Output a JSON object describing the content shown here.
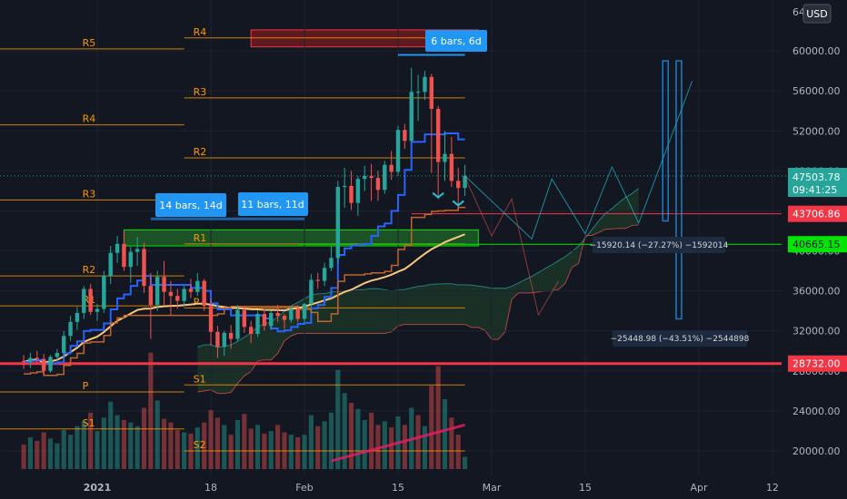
{
  "currency_button": "USD",
  "price_tag": {
    "price": "47503.78",
    "countdown": "09:41:25",
    "color": "#26a69a"
  },
  "level_tags": [
    {
      "text": "43706.86",
      "value": 43706.86,
      "bg": "#f23645",
      "line": "#f23645"
    },
    {
      "text": "40665.15",
      "value": 40665.15,
      "bg": "#00e600",
      "line": "#00e600",
      "dark_text": true
    },
    {
      "text": "28732.00",
      "value": 28732,
      "bg": "#f23645",
      "line": "#f23645"
    }
  ],
  "annotations": [
    {
      "text": "6 bars, 6d"
    },
    {
      "text": "14 bars, 14d"
    },
    {
      "text": "11 bars, 11d"
    }
  ],
  "measure_labels": [
    {
      "text": "−15920.14 (−27.27%) −1592014"
    },
    {
      "text": "−25448.98 (−43.51%) −2544898"
    }
  ],
  "colors": {
    "up": "#26a69a",
    "down": "#ef5350",
    "vwap": "#2962ff",
    "ma": "#f7c77e",
    "pivot": "#ff9800",
    "cloud": "#1e3a2a"
  },
  "chart_data": {
    "type": "candlestick",
    "y_axis": {
      "range": [
        18000,
        64000
      ],
      "ticks": [
        20000,
        24000,
        28000,
        32000,
        36000,
        40000,
        44000,
        48000,
        52000,
        56000,
        60000
      ],
      "tick_labels": [
        "20000.00",
        "24000.00",
        "28000.00",
        "32000.00",
        "36000.00",
        "40000.00",
        "44000.00",
        "48000.00",
        "52000.00",
        "56000.00",
        "60000.00"
      ],
      "top_partial_label": "64"
    },
    "x_axis": {
      "labels": [
        {
          "text": "2021",
          "bold": true,
          "day": 1
        },
        {
          "text": "18",
          "day": 18
        },
        {
          "text": "Feb",
          "day": 32
        },
        {
          "text": "15",
          "day": 46
        },
        {
          "text": "Mar",
          "day": 60
        },
        {
          "text": "15",
          "day": 74
        },
        {
          "text": "Apr",
          "day": 91
        },
        {
          "text": "12",
          "day": 102
        }
      ]
    },
    "candles": [
      [
        -10,
        29000,
        29600,
        28200,
        28900
      ],
      [
        -9,
        28900,
        29800,
        28300,
        29300
      ],
      [
        -8,
        29300,
        30000,
        28800,
        29200
      ],
      [
        -7,
        29200,
        29700,
        27500,
        28000
      ],
      [
        -6,
        28000,
        29600,
        27800,
        29400
      ],
      [
        -5,
        29400,
        30200,
        29000,
        29800
      ],
      [
        -4,
        29800,
        32000,
        29300,
        31500
      ],
      [
        -3,
        31500,
        33500,
        31000,
        32900
      ],
      [
        -2,
        32900,
        34400,
        32100,
        33800
      ],
      [
        -1,
        33800,
        36500,
        33200,
        36200
      ],
      [
        0,
        36200,
        36700,
        33600,
        33900
      ],
      [
        1,
        33900,
        34700,
        33000,
        34200
      ],
      [
        2,
        34200,
        38000,
        33800,
        37500
      ],
      [
        3,
        37500,
        40500,
        36700,
        39800
      ],
      [
        4,
        39800,
        41500,
        38800,
        40700
      ],
      [
        5,
        40700,
        42000,
        38000,
        38400
      ],
      [
        6,
        38400,
        40400,
        36800,
        39900
      ],
      [
        7,
        39900,
        41400,
        38500,
        40200
      ],
      [
        8,
        40200,
        40800,
        35800,
        36500
      ],
      [
        9,
        36500,
        37800,
        31200,
        34600
      ],
      [
        10,
        34600,
        38000,
        34000,
        37400
      ],
      [
        11,
        37400,
        39000,
        34500,
        35900
      ],
      [
        12,
        35900,
        37000,
        33600,
        35500
      ],
      [
        13,
        35500,
        36200,
        34200,
        35000
      ],
      [
        14,
        35000,
        36500,
        34400,
        36200
      ],
      [
        15,
        36200,
        37200,
        35300,
        35900
      ],
      [
        16,
        35900,
        37800,
        35500,
        37000
      ],
      [
        17,
        37000,
        37200,
        34000,
        34500
      ],
      [
        18,
        34500,
        35200,
        30500,
        31900
      ],
      [
        19,
        31900,
        32500,
        29300,
        30400
      ],
      [
        20,
        30400,
        32000,
        29500,
        31800
      ],
      [
        21,
        31800,
        32600,
        30200,
        31200
      ],
      [
        22,
        31200,
        34600,
        31000,
        34100
      ],
      [
        23,
        34100,
        34500,
        31800,
        32400
      ],
      [
        24,
        32400,
        33000,
        30800,
        31700
      ],
      [
        25,
        31700,
        34000,
        31400,
        33700
      ],
      [
        26,
        33700,
        34200,
        32000,
        32500
      ],
      [
        27,
        32500,
        34000,
        32100,
        33800
      ],
      [
        28,
        33800,
        34600,
        32900,
        33500
      ],
      [
        29,
        33500,
        33700,
        32200,
        33100
      ],
      [
        30,
        33100,
        34500,
        32800,
        34200
      ],
      [
        31,
        34200,
        34600,
        32900,
        33200
      ],
      [
        32,
        33200,
        34800,
        32900,
        34700
      ],
      [
        33,
        34700,
        37700,
        34300,
        37100
      ],
      [
        34,
        37100,
        37800,
        36200,
        37000
      ],
      [
        35,
        37000,
        38800,
        36500,
        38300
      ],
      [
        36,
        38300,
        40500,
        38000,
        39300
      ],
      [
        37,
        39300,
        47000,
        38700,
        46400
      ],
      [
        38,
        46400,
        48300,
        44300,
        46500
      ],
      [
        39,
        46500,
        48000,
        44100,
        44800
      ],
      [
        40,
        44800,
        47500,
        43500,
        47200
      ],
      [
        41,
        47200,
        48500,
        46000,
        47500
      ],
      [
        42,
        47500,
        48700,
        45000,
        47300
      ],
      [
        43,
        47300,
        48000,
        45000,
        46100
      ],
      [
        44,
        46100,
        49000,
        45700,
        48600
      ],
      [
        45,
        48600,
        50000,
        47100,
        47900
      ],
      [
        46,
        47900,
        52500,
        47500,
        52100
      ],
      [
        47,
        52100,
        52700,
        50200,
        51000
      ],
      [
        48,
        51000,
        58300,
        50800,
        55900
      ],
      [
        49,
        55900,
        57600,
        53000,
        55900
      ],
      [
        50,
        55900,
        58000,
        55100,
        57400
      ],
      [
        51,
        57400,
        57700,
        47800,
        54200
      ],
      [
        52,
        54200,
        54500,
        45200,
        48900
      ],
      [
        53,
        48900,
        52000,
        47000,
        49700
      ],
      [
        54,
        49700,
        51400,
        46400,
        47000
      ],
      [
        55,
        47000,
        48300,
        44000,
        46300
      ],
      [
        56,
        46300,
        48600,
        45500,
        47500
      ]
    ],
    "volume_bars": [
      [
        -10,
        2.0,
        0
      ],
      [
        -9,
        2.6,
        1
      ],
      [
        -8,
        2.3,
        0
      ],
      [
        -7,
        3.0,
        0
      ],
      [
        -6,
        2.5,
        1
      ],
      [
        -5,
        2.1,
        1
      ],
      [
        -4,
        3.2,
        1
      ],
      [
        -3,
        2.8,
        1
      ],
      [
        -2,
        3.5,
        1
      ],
      [
        -1,
        3.9,
        1
      ],
      [
        0,
        4.6,
        0
      ],
      [
        1,
        3.1,
        1
      ],
      [
        2,
        4.2,
        1
      ],
      [
        3,
        5.5,
        1
      ],
      [
        4,
        4.4,
        1
      ],
      [
        5,
        4.0,
        0
      ],
      [
        6,
        3.8,
        1
      ],
      [
        7,
        3.5,
        1
      ],
      [
        8,
        5.0,
        0
      ],
      [
        9,
        9.5,
        0
      ],
      [
        10,
        5.6,
        1
      ],
      [
        11,
        4.1,
        0
      ],
      [
        12,
        3.8,
        0
      ],
      [
        13,
        3.2,
        0
      ],
      [
        14,
        3.0,
        1
      ],
      [
        15,
        2.9,
        0
      ],
      [
        16,
        3.4,
        1
      ],
      [
        17,
        3.8,
        0
      ],
      [
        18,
        4.8,
        0
      ],
      [
        19,
        4.2,
        0
      ],
      [
        20,
        3.6,
        1
      ],
      [
        21,
        2.8,
        0
      ],
      [
        22,
        4.0,
        1
      ],
      [
        23,
        4.5,
        0
      ],
      [
        24,
        3.3,
        0
      ],
      [
        25,
        3.6,
        1
      ],
      [
        26,
        2.9,
        0
      ],
      [
        27,
        3.1,
        1
      ],
      [
        28,
        3.6,
        0
      ],
      [
        29,
        3.0,
        0
      ],
      [
        30,
        2.8,
        1
      ],
      [
        31,
        2.6,
        0
      ],
      [
        32,
        2.8,
        1
      ],
      [
        33,
        4.4,
        1
      ],
      [
        34,
        3.5,
        0
      ],
      [
        35,
        3.9,
        1
      ],
      [
        36,
        4.6,
        1
      ],
      [
        37,
        8.1,
        1
      ],
      [
        38,
        6.2,
        1
      ],
      [
        39,
        5.4,
        0
      ],
      [
        40,
        4.9,
        1
      ],
      [
        41,
        4.0,
        1
      ],
      [
        42,
        4.6,
        0
      ],
      [
        43,
        3.6,
        0
      ],
      [
        44,
        3.9,
        1
      ],
      [
        45,
        3.4,
        0
      ],
      [
        46,
        4.3,
        1
      ],
      [
        47,
        3.6,
        0
      ],
      [
        48,
        5.0,
        1
      ],
      [
        49,
        4.4,
        0
      ],
      [
        50,
        3.5,
        1
      ],
      [
        51,
        6.8,
        0
      ],
      [
        52,
        8.4,
        0
      ],
      [
        53,
        5.7,
        1
      ],
      [
        54,
        4.2,
        0
      ],
      [
        55,
        2.8,
        0
      ],
      [
        56,
        1.0,
        1
      ]
    ],
    "pivot_levels": [
      {
        "label": "R5",
        "value": 60200,
        "from_day": -14,
        "to_day": 14,
        "color": "#ff9800"
      },
      {
        "label": "R4",
        "value": 52600,
        "from_day": -14,
        "to_day": 14,
        "color": "#ff9800"
      },
      {
        "label": "R3",
        "value": 45100,
        "from_day": -14,
        "to_day": 14,
        "color": "#ff9800"
      },
      {
        "label": "R2",
        "value": 37500,
        "from_day": -14,
        "to_day": 14,
        "color": "#ff9800"
      },
      {
        "label": "R1",
        "value": 34500,
        "from_day": -14,
        "to_day": 14,
        "color": "#ff9800"
      },
      {
        "label": "P",
        "value": 25900,
        "from_day": -14,
        "to_day": 14,
        "color": "#ff9800"
      },
      {
        "label": "S1",
        "value": 22200,
        "from_day": -14,
        "to_day": 14,
        "color": "#ff9800"
      },
      {
        "label": "R4",
        "value": 61300,
        "from_day": 14,
        "to_day": 56,
        "color": "#ff9800"
      },
      {
        "label": "R3",
        "value": 55300,
        "from_day": 14,
        "to_day": 56,
        "color": "#ff9800"
      },
      {
        "label": "R2",
        "value": 49300,
        "from_day": 14,
        "to_day": 56,
        "color": "#ff9800"
      },
      {
        "label": "R1",
        "value": 40700,
        "from_day": 14,
        "to_day": 56,
        "color": "#ff9800"
      },
      {
        "label": "P",
        "value": 34300,
        "from_day": 14,
        "to_day": 56,
        "color": "#ff9800"
      },
      {
        "label": "S1",
        "value": 26600,
        "from_day": 14,
        "to_day": 56,
        "color": "#ff9800"
      },
      {
        "label": "S2",
        "value": 20000,
        "from_day": 14,
        "to_day": 56,
        "color": "#ff9800"
      }
    ],
    "support_levels": [
      {
        "value": 28732,
        "from_day": -14,
        "to_day": 110,
        "color": "#f23645",
        "width": 3
      },
      {
        "value": 43706.86,
        "from_day": 48,
        "to_day": 110,
        "color": "#f23645",
        "width": 1
      },
      {
        "value": 40665.15,
        "from_day": 31,
        "to_day": 110,
        "color": "#00e600",
        "width": 1
      }
    ],
    "zones": [
      {
        "from_day": 24,
        "to_day": 58,
        "y_from": 60400,
        "y_to": 62100,
        "fill": "#7f1d1d",
        "stroke": "#f23645"
      },
      {
        "from_day": 5,
        "to_day": 58,
        "y_from": 40500,
        "y_to": 42100,
        "fill": "#1f6e2a",
        "stroke": "#00e600"
      }
    ]
  }
}
